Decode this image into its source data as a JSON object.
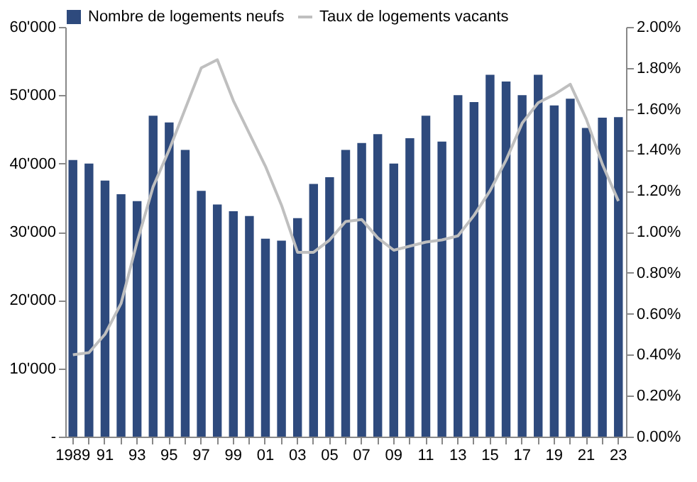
{
  "chart_data": {
    "type": "bar",
    "categories": [
      "1989",
      null,
      "91",
      null,
      "93",
      null,
      "95",
      null,
      "97",
      null,
      "99",
      null,
      "01",
      null,
      "03",
      null,
      "05",
      null,
      "07",
      null,
      "09",
      null,
      "11",
      null,
      "13",
      null,
      "15",
      null,
      "17",
      null,
      "19",
      null,
      "21",
      null,
      "23"
    ],
    "series": [
      {
        "name": "Nombre de logements neufs",
        "color": "#2e4a7d",
        "values": [
          40500,
          40000,
          37500,
          35500,
          34500,
          47000,
          46000,
          42000,
          36000,
          34000,
          33000,
          32300,
          29000,
          28700,
          32000,
          37000,
          38000,
          42000,
          43000,
          44300,
          40000,
          43700,
          47000,
          43200,
          50000,
          49000,
          53000,
          52000,
          50000,
          53000,
          48500,
          49500,
          45200,
          46700,
          46800
        ]
      },
      {
        "name": "Taux de logements vacants",
        "type": "line",
        "axis": "y2",
        "color": "#bfbfbf",
        "values": [
          0.4,
          0.41,
          0.5,
          0.65,
          0.95,
          1.22,
          1.4,
          1.6,
          1.8,
          1.84,
          1.64,
          1.48,
          1.32,
          1.13,
          0.9,
          0.9,
          0.96,
          1.05,
          1.06,
          0.97,
          0.91,
          0.93,
          0.95,
          0.96,
          0.98,
          1.08,
          1.2,
          1.35,
          1.53,
          1.63,
          1.67,
          1.72,
          1.55,
          1.33,
          1.15
        ]
      }
    ],
    "ylim": [
      0,
      60000
    ],
    "yticks": [
      {
        "value": 0,
        "label": "-"
      },
      {
        "value": 10000,
        "label": "10'000"
      },
      {
        "value": 20000,
        "label": "20'000"
      },
      {
        "value": 30000,
        "label": "30'000"
      },
      {
        "value": 40000,
        "label": "40'000"
      },
      {
        "value": 50000,
        "label": "50'000"
      },
      {
        "value": 60000,
        "label": "60'000"
      }
    ],
    "y2lim": [
      0,
      2
    ],
    "y2ticks": [
      {
        "value": 0,
        "label": "0.00%"
      },
      {
        "value": 0.2,
        "label": "0.20%"
      },
      {
        "value": 0.4,
        "label": "0.40%"
      },
      {
        "value": 0.6,
        "label": "0.60%"
      },
      {
        "value": 0.8,
        "label": "0.80%"
      },
      {
        "value": 1.0,
        "label": "1.00%"
      },
      {
        "value": 1.2,
        "label": "1.20%"
      },
      {
        "value": 1.4,
        "label": "1.40%"
      },
      {
        "value": 1.6,
        "label": "1.60%"
      },
      {
        "value": 1.8,
        "label": "1.80%"
      },
      {
        "value": 2.0,
        "label": "2.00%"
      }
    ],
    "grid": false,
    "legend": "top"
  }
}
